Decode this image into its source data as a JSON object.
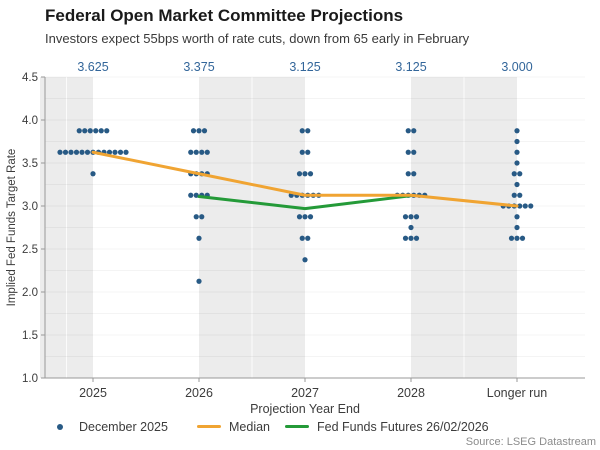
{
  "header": {
    "title": "Federal Open Market Committee Projections",
    "subtitle": "Investors expect 55bps worth of rate cuts, down from 65 early in February"
  },
  "chart_data": {
    "type": "scatter",
    "title": "Federal Open Market Committee Projections",
    "subtitle": "Investors expect 55bps worth of rate cuts, down from 65 early in February",
    "xlabel": "Projection Year End",
    "ylabel": "Implied Fed Funds Target Rate",
    "ylim": [
      1.0,
      4.5
    ],
    "ytick_interval": 0.5,
    "minor_grid_interval": 0.25,
    "grid": "faint horizontal lines every 0.25",
    "legend_position": "bottom",
    "categories": [
      "2025",
      "2026",
      "2027",
      "2028",
      "Longer run"
    ],
    "top_median_labels": [
      "3.625",
      "3.375",
      "3.125",
      "3.125",
      "3.000"
    ],
    "shaded_column_ranges": [
      [
        -0.5,
        0
      ],
      [
        1,
        2
      ],
      [
        3,
        4
      ]
    ],
    "dot_series": {
      "name": "December 2025",
      "columns": [
        {
          "category": "2025",
          "points": [
            {
              "rate": 3.875,
              "count": 6
            },
            {
              "rate": 3.625,
              "count": 13
            },
            {
              "rate": 3.375,
              "count": 1
            }
          ]
        },
        {
          "category": "2026",
          "points": [
            {
              "rate": 3.875,
              "count": 3
            },
            {
              "rate": 3.625,
              "count": 4
            },
            {
              "rate": 3.375,
              "count": 4
            },
            {
              "rate": 3.125,
              "count": 4
            },
            {
              "rate": 2.875,
              "count": 2
            },
            {
              "rate": 2.625,
              "count": 1
            },
            {
              "rate": 2.125,
              "count": 1
            }
          ]
        },
        {
          "category": "2027",
          "points": [
            {
              "rate": 3.875,
              "count": 2
            },
            {
              "rate": 3.625,
              "count": 2
            },
            {
              "rate": 3.375,
              "count": 3
            },
            {
              "rate": 3.125,
              "count": 6
            },
            {
              "rate": 2.875,
              "count": 3
            },
            {
              "rate": 2.625,
              "count": 2
            },
            {
              "rate": 2.375,
              "count": 1
            }
          ]
        },
        {
          "category": "2028",
          "points": [
            {
              "rate": 3.875,
              "count": 2
            },
            {
              "rate": 3.625,
              "count": 2
            },
            {
              "rate": 3.375,
              "count": 2
            },
            {
              "rate": 3.125,
              "count": 6
            },
            {
              "rate": 2.875,
              "count": 3
            },
            {
              "rate": 2.75,
              "count": 1
            },
            {
              "rate": 2.625,
              "count": 3
            }
          ]
        },
        {
          "category": "Longer run",
          "points": [
            {
              "rate": 3.875,
              "count": 1
            },
            {
              "rate": 3.75,
              "count": 1
            },
            {
              "rate": 3.625,
              "count": 1
            },
            {
              "rate": 3.5,
              "count": 1
            },
            {
              "rate": 3.375,
              "count": 2
            },
            {
              "rate": 3.25,
              "count": 1
            },
            {
              "rate": 3.125,
              "count": 2
            },
            {
              "rate": 3.0,
              "count": 6
            },
            {
              "rate": 2.875,
              "count": 1
            },
            {
              "rate": 2.75,
              "count": 1
            },
            {
              "rate": 2.625,
              "count": 3
            }
          ]
        }
      ]
    },
    "series": [
      {
        "name": "Median",
        "type": "line",
        "color": "#F0A432",
        "categories": [
          "2025",
          "2026",
          "2027",
          "2028",
          "Longer run"
        ],
        "values": [
          3.625,
          3.375,
          3.125,
          3.125,
          3.0
        ]
      },
      {
        "name": "Fed Funds Futures 26/02/2026",
        "type": "line",
        "color": "#249A38",
        "categories": [
          "2026",
          "2027",
          "2028"
        ],
        "values": [
          3.11,
          2.97,
          3.12
        ]
      }
    ],
    "legend": [
      {
        "label": "December 2025",
        "swatch": "dot",
        "color": "#285A85"
      },
      {
        "label": "Median",
        "swatch": "line",
        "color": "#F0A432"
      },
      {
        "label": "Fed Funds Futures 26/02/2026",
        "swatch": "line",
        "color": "#249A38"
      }
    ],
    "colors": {
      "dot": "#285A85",
      "median_line": "#F0A432",
      "futures_line": "#249A38",
      "top_labels": "#33669A",
      "shaded_band": "#ECECEC",
      "axis": "#999999",
      "axis_text": "#3C3C3C",
      "title_text": "#1A1A1A",
      "subtitle_text": "#3A3A3A",
      "source_text": "#8C8C8C"
    },
    "source": "Source: LSEG Datastream"
  }
}
